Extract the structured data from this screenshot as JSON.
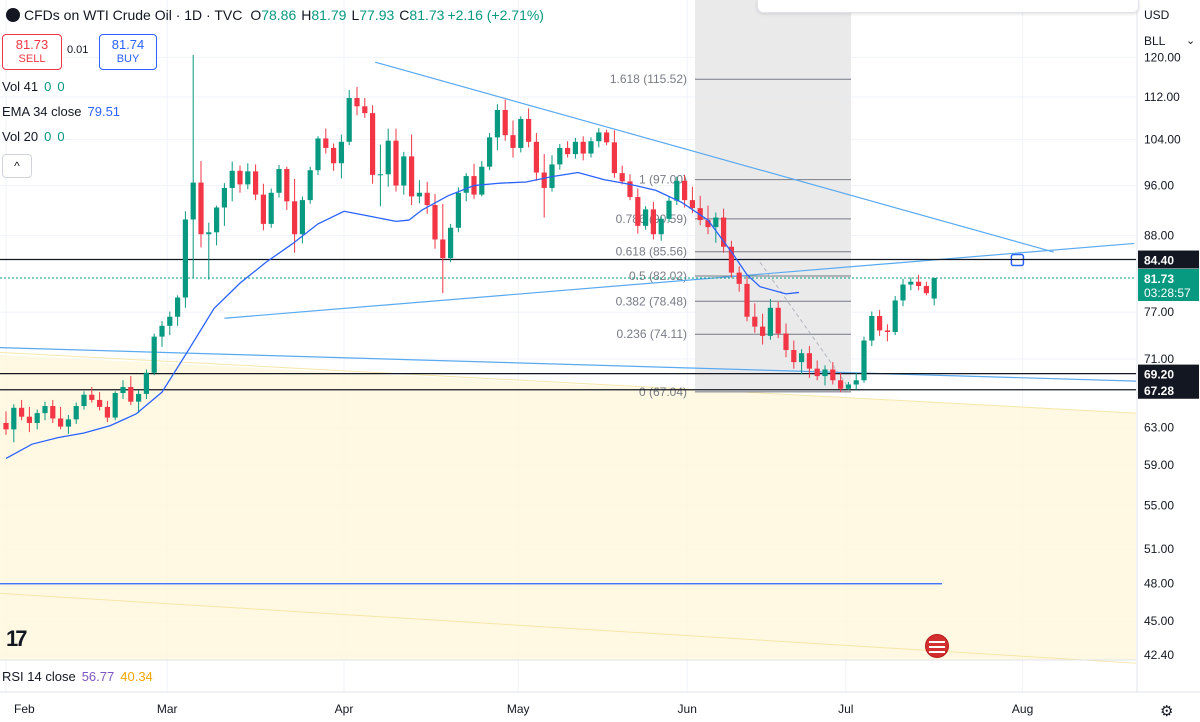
{
  "header": {
    "title": "CFDs on WTI Crude Oil · 1D · TVC",
    "open_label": "O",
    "open": "78.86",
    "high_label": "H",
    "high": "81.79",
    "low_label": "L",
    "low": "77.93",
    "close_label": "C",
    "close": "81.73",
    "change": "+2.16 (+2.71%)"
  },
  "trade": {
    "sell_price": "81.73",
    "sell_label": "SELL",
    "spread": "0.01",
    "buy_price": "81.74",
    "buy_label": "BUY"
  },
  "indicators": {
    "vol41_name": "Vol 41",
    "vol41_v1": "0",
    "vol41_v2": "0",
    "ema_name": "EMA 34 close",
    "ema_value": "79.51",
    "vol20_name": "Vol 20",
    "vol20_v1": "0",
    "vol20_v2": "0",
    "collapse_glyph": "^"
  },
  "rsi": {
    "name": "RSI 14 close",
    "value": "56.77",
    "ma": "40.34"
  },
  "axis_header": {
    "currency": "USD",
    "unit": "BLL",
    "unit_arrow": "⌄"
  },
  "colors": {
    "up": "#089981",
    "down": "#f23645",
    "ema": "#2962ff",
    "trend": "#5aaaf0",
    "fib_zone": "#e6e6e8",
    "yellow_zone": "#fff8dc",
    "grid": "#f0f3fa"
  },
  "icons": {
    "logo": "tradingview-logo-icon",
    "flag": "us-flag-icon",
    "settings": "gear-icon"
  },
  "chart_data": {
    "type": "candlestick",
    "title": "CFDs on WTI Crude Oil · 1D · TVC",
    "y_ticks": [
      "120.00",
      "112.00",
      "104.00",
      "96.00",
      "88.00",
      "77.00",
      "71.00",
      "63.00",
      "59.00",
      "55.00",
      "51.00",
      "48.00",
      "45.00",
      "42.40"
    ],
    "x_labels": [
      "Feb",
      "Mar",
      "Apr",
      "May",
      "Jun",
      "Jul",
      "Aug"
    ],
    "y_scale": "log",
    "price_labels": [
      {
        "value": 84.4,
        "text": "84.40",
        "style": "dark"
      },
      {
        "value": 81.73,
        "text": "81.73",
        "sub": "03:28:57",
        "style": "green"
      },
      {
        "value": 69.2,
        "text": "69.20",
        "style": "dark"
      },
      {
        "value": 67.28,
        "text": "67.28",
        "style": "dark"
      }
    ],
    "fibonacci": {
      "from": 67.04,
      "to": 97.0,
      "levels": [
        {
          "ratio": "1.618",
          "value": 115.52,
          "label": "1.618 (115.52)"
        },
        {
          "ratio": "1",
          "value": 97.0,
          "label": "1 (97.00)"
        },
        {
          "ratio": "0.786",
          "value": 90.59,
          "label": "0.786 (90.59)"
        },
        {
          "ratio": "0.618",
          "value": 85.56,
          "label": "0.618 (85.56)"
        },
        {
          "ratio": "0.5",
          "value": 82.02,
          "label": "0.5 (82.02)"
        },
        {
          "ratio": "0.382",
          "value": 78.48,
          "label": "0.382 (78.48)"
        },
        {
          "ratio": "0.236",
          "value": 74.11,
          "label": "0.236 (74.11)"
        },
        {
          "ratio": "0",
          "value": 67.04,
          "label": "0 (67.04)"
        }
      ]
    },
    "horizontal_lines": [
      84.4,
      69.2,
      67.28,
      48.0
    ],
    "ema34": [
      [
        0,
        59.7
      ],
      [
        10,
        61.2
      ],
      [
        20,
        61.9
      ],
      [
        30,
        62.4
      ],
      [
        40,
        63.2
      ],
      [
        50,
        64.5
      ],
      [
        60,
        67
      ],
      [
        70,
        72
      ],
      [
        80,
        77.5
      ],
      [
        90,
        81
      ],
      [
        100,
        84
      ],
      [
        110,
        86.7
      ],
      [
        120,
        89.8
      ],
      [
        130,
        91.8
      ],
      [
        140,
        91
      ],
      [
        150,
        90.2
      ],
      [
        155,
        90.4
      ],
      [
        160,
        92
      ],
      [
        170,
        94.3
      ],
      [
        180,
        96
      ],
      [
        190,
        96.4
      ],
      [
        200,
        96.6
      ],
      [
        210,
        97.5
      ],
      [
        220,
        98.2
      ],
      [
        230,
        97
      ],
      [
        240,
        96.2
      ],
      [
        250,
        95.2
      ],
      [
        260,
        93.2
      ],
      [
        270,
        90.4
      ],
      [
        280,
        85
      ],
      [
        285,
        82.2
      ],
      [
        290,
        80.5
      ],
      [
        300,
        79.5
      ],
      [
        305,
        79.7
      ]
    ],
    "candles": [
      [
        0,
        63.5,
        64.8,
        62.2,
        62.8
      ],
      [
        3,
        62.8,
        65.6,
        61.4,
        65.2
      ],
      [
        6,
        65.2,
        66.1,
        63.8,
        64.2
      ],
      [
        9,
        64.2,
        65.3,
        62.5,
        63.5
      ],
      [
        12,
        63.5,
        65,
        62.8,
        64.6
      ],
      [
        15,
        64.6,
        65.9,
        63.8,
        65.4
      ],
      [
        18,
        65.4,
        66.1,
        63.5,
        64
      ],
      [
        21,
        64,
        65.3,
        62.8,
        63.1
      ],
      [
        24,
        63.1,
        64.4,
        62.3,
        63.9
      ],
      [
        27,
        63.9,
        65.8,
        63.4,
        65.4
      ],
      [
        30,
        65.4,
        67.1,
        65,
        66.7
      ],
      [
        33,
        66.7,
        67.6,
        65.8,
        66.1
      ],
      [
        36,
        66.1,
        67,
        64.9,
        65.3
      ],
      [
        39,
        65.3,
        66,
        63.6,
        64.1
      ],
      [
        42,
        64.1,
        67.1,
        63.8,
        66.9
      ],
      [
        45,
        66.9,
        68.4,
        66.2,
        67.6
      ],
      [
        48,
        67.6,
        68.9,
        65.5,
        65.9
      ],
      [
        51,
        65.9,
        67.2,
        64.6,
        66.8
      ],
      [
        54,
        66.8,
        69.7,
        66.2,
        69.3
      ],
      [
        57,
        69.3,
        74.2,
        69,
        73.8
      ],
      [
        60,
        73.8,
        75.8,
        72.5,
        75.2
      ],
      [
        63,
        75.2,
        77.1,
        74,
        76.4
      ],
      [
        66,
        76.4,
        79.3,
        75.2,
        79
      ],
      [
        69,
        79,
        91.8,
        77.6,
        90.5
      ],
      [
        72,
        90.5,
        120.5,
        81.8,
        96.5
      ],
      [
        75,
        96.5,
        100.2,
        86.2,
        88.2
      ],
      [
        78,
        88.2,
        90,
        81.5,
        88.5
      ],
      [
        81,
        88.5,
        92.7,
        86.5,
        92.4
      ],
      [
        84,
        92.4,
        96.4,
        89.5,
        95.6
      ],
      [
        87,
        95.6,
        100.1,
        93.4,
        98.5
      ],
      [
        90,
        98.5,
        99.4,
        94.8,
        96.2
      ],
      [
        93,
        96.2,
        99.8,
        95.4,
        98.4
      ],
      [
        96,
        98.4,
        99.6,
        93.6,
        94.5
      ],
      [
        99,
        94.5,
        96.3,
        88.8,
        89.8
      ],
      [
        102,
        89.8,
        95.5,
        89.2,
        94.8
      ],
      [
        105,
        94.8,
        99.5,
        94,
        98.8
      ],
      [
        108,
        98.8,
        99.2,
        92,
        93.4
      ],
      [
        111,
        93.4,
        97.1,
        85.4,
        88.2
      ],
      [
        114,
        88.2,
        94.2,
        86.8,
        93.6
      ],
      [
        117,
        93.6,
        99.2,
        93,
        98.6
      ],
      [
        120,
        98.6,
        104.6,
        97.8,
        104.2
      ],
      [
        123,
        104.2,
        106,
        101.5,
        102.5
      ],
      [
        126,
        102.5,
        103.3,
        98.5,
        99.8
      ],
      [
        129,
        99.8,
        104.9,
        97.2,
        103.6
      ],
      [
        132,
        103.6,
        113.4,
        103,
        111.8
      ],
      [
        135,
        111.8,
        114,
        108.5,
        110.2
      ],
      [
        138,
        110.2,
        111.8,
        108,
        108.9
      ],
      [
        141,
        108.9,
        110.4,
        96.3,
        97.8
      ],
      [
        144,
        97.8,
        103.1,
        92.6,
        97.9
      ],
      [
        147,
        97.9,
        106,
        95.8,
        103.8
      ],
      [
        150,
        103.8,
        106,
        95,
        96
      ],
      [
        153,
        96,
        101.8,
        94.5,
        101
      ],
      [
        156,
        101,
        104.9,
        92.8,
        94.2
      ],
      [
        159,
        94.2,
        96.9,
        93.1,
        94.8
      ],
      [
        162,
        94.8,
        96.6,
        91.4,
        92.8
      ],
      [
        165,
        92.8,
        94.6,
        86,
        87.4
      ],
      [
        168,
        87.4,
        93,
        79.6,
        84.6
      ],
      [
        171,
        84.6,
        89.8,
        84,
        89.2
      ],
      [
        174,
        89.2,
        95.7,
        88.5,
        94.8
      ],
      [
        177,
        94.8,
        98.1,
        93.4,
        97.6
      ],
      [
        180,
        97.6,
        99.7,
        93.8,
        94.5
      ],
      [
        183,
        94.5,
        100.2,
        94.2,
        99.2
      ],
      [
        186,
        99.2,
        105.2,
        98.6,
        104.4
      ],
      [
        189,
        104.4,
        110.6,
        102.1,
        109.5
      ],
      [
        192,
        109.5,
        111.5,
        103.8,
        104.8
      ],
      [
        195,
        104.8,
        107.5,
        100.8,
        102.5
      ],
      [
        198,
        102.5,
        108.3,
        101.7,
        107.8
      ],
      [
        201,
        107.8,
        109.8,
        102.6,
        103.6
      ],
      [
        204,
        103.6,
        105.2,
        96.8,
        98.2
      ],
      [
        207,
        98.2,
        101.4,
        90.8,
        95.6
      ],
      [
        210,
        95.6,
        101.2,
        95,
        99.6
      ],
      [
        213,
        99.6,
        103.2,
        98.7,
        102.5
      ],
      [
        216,
        102.5,
        103.7,
        100.8,
        101.4
      ],
      [
        219,
        101.4,
        104.3,
        100.6,
        103.6
      ],
      [
        222,
        103.6,
        104.6,
        100.3,
        101.5
      ],
      [
        225,
        101.5,
        104.4,
        100.8,
        103.7
      ],
      [
        228,
        103.7,
        106.1,
        102.6,
        105.3
      ],
      [
        231,
        105.3,
        105.8,
        103,
        103.5
      ],
      [
        234,
        103.5,
        105.7,
        97.3,
        98.1
      ],
      [
        237,
        98.1,
        99.4,
        96.2,
        96.7
      ],
      [
        240,
        96.7,
        97.9,
        93.6,
        94.1
      ],
      [
        243,
        94.1,
        95.5,
        88.3,
        89.5
      ],
      [
        246,
        89.5,
        92.6,
        88.9,
        92.1
      ],
      [
        249,
        92.1,
        93.3,
        87.4,
        88.2
      ],
      [
        252,
        88.2,
        91,
        87.2,
        90.6
      ],
      [
        255,
        90.6,
        94.2,
        90.1,
        93.5
      ],
      [
        258,
        93.5,
        97.5,
        92.8,
        96.8
      ],
      [
        261,
        96.8,
        97.8,
        92.4,
        93.6
      ],
      [
        264,
        93.6,
        95.8,
        91.5,
        92.3
      ],
      [
        267,
        92.3,
        94.3,
        89.6,
        90.4
      ],
      [
        270,
        90.4,
        92.7,
        88.2,
        89.3
      ],
      [
        273,
        89.3,
        91.6,
        86.9,
        90.8
      ],
      [
        276,
        90.8,
        92.2,
        85.4,
        86.3
      ],
      [
        279,
        86.3,
        87.2,
        81.8,
        82.5
      ],
      [
        282,
        82.5,
        83.4,
        79.8,
        80.9
      ],
      [
        285,
        80.9,
        81.9,
        75.8,
        76.4
      ],
      [
        288,
        76.4,
        78.2,
        74.3,
        75.1
      ],
      [
        291,
        75.1,
        76.8,
        72.8,
        73.9
      ],
      [
        294,
        73.9,
        78.8,
        73.4,
        77.6
      ],
      [
        297,
        77.6,
        78.4,
        73.6,
        74.2
      ],
      [
        300,
        74.2,
        75.5,
        71.2,
        72.1
      ],
      [
        303,
        72.1,
        73.3,
        69.8,
        70.6
      ],
      [
        306,
        70.6,
        72.2,
        69.1,
        71.7
      ],
      [
        309,
        71.7,
        72.6,
        68.7,
        69.8
      ],
      [
        312,
        69.8,
        70.8,
        68.4,
        68.9
      ],
      [
        315,
        68.9,
        70.2,
        67.8,
        69.7
      ],
      [
        318,
        69.7,
        70.6,
        67.9,
        68.4
      ],
      [
        321,
        68.4,
        69.3,
        67,
        67.4
      ],
      [
        324,
        67.4,
        68.2,
        67.2,
        67.9
      ],
      [
        327,
        67.9,
        69.3,
        67.3,
        68.4
      ],
      [
        330,
        68.4,
        73.8,
        68.1,
        73.3
      ],
      [
        333,
        73.3,
        77.1,
        72.6,
        76.5
      ],
      [
        336,
        76.5,
        77.3,
        73.9,
        74.6
      ],
      [
        339,
        74.6,
        75.4,
        73.2,
        74.4
      ],
      [
        342,
        74.4,
        79.2,
        74,
        78.6
      ],
      [
        345,
        78.6,
        81.6,
        77.8,
        80.8
      ],
      [
        348,
        80.8,
        81.8,
        80,
        81.2
      ],
      [
        351,
        81.2,
        82.2,
        80,
        80.6
      ],
      [
        354,
        80.6,
        81.2,
        79.3,
        79.6
      ],
      [
        357,
        78.86,
        81.79,
        77.93,
        81.73
      ]
    ]
  }
}
